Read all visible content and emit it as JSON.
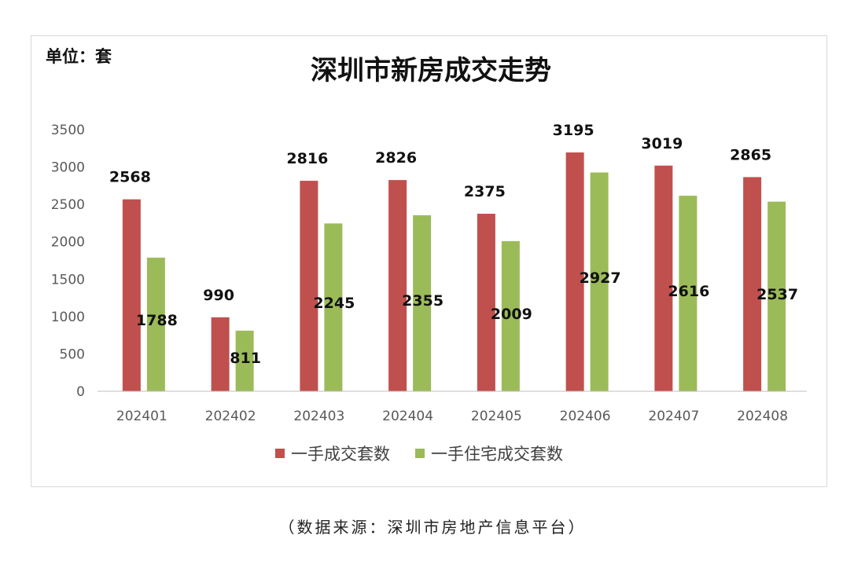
{
  "chart_data": {
    "type": "bar",
    "title": "深圳市新房成交走势",
    "unit_label": "单位：套",
    "categories": [
      "202401",
      "202402",
      "202403",
      "202404",
      "202405",
      "202406",
      "202407",
      "202408"
    ],
    "series": [
      {
        "name": "一手成交套数",
        "color": "#c0504d",
        "values": [
          2568,
          990,
          2816,
          2826,
          2375,
          3195,
          3019,
          2865
        ],
        "labels": [
          "2568",
          "990",
          "2816",
          "2826",
          "2375",
          "3195",
          "3019",
          "2865"
        ]
      },
      {
        "name": "一手住宅成交套数",
        "color": "#9bbb59",
        "values": [
          1788,
          811,
          2245,
          2355,
          2009,
          2927,
          2616,
          2537
        ],
        "labels": [
          "1788",
          "811",
          "2245",
          "2355",
          "2009",
          "2927",
          "2616",
          "2537"
        ]
      }
    ],
    "yticks": [
      "0",
      "500",
      "1000",
      "1500",
      "2000",
      "2500",
      "3000",
      "3500"
    ],
    "ylim": [
      0,
      3500
    ],
    "xlabel": "",
    "ylabel": "",
    "legend_position": "bottom",
    "grid": false
  },
  "caption": "（数据来源：深圳市房地产信息平台）"
}
